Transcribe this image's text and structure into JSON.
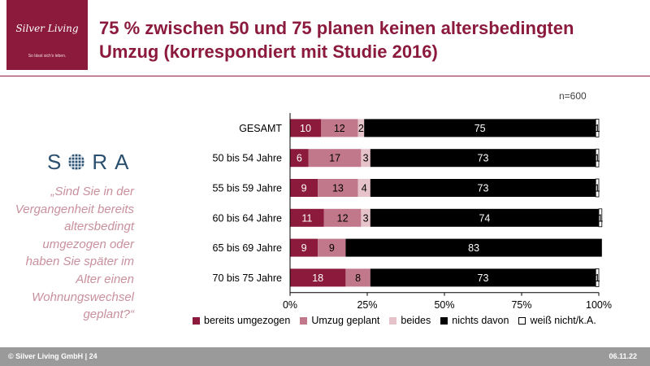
{
  "logo": {
    "name": "Silver Living",
    "tagline": "So lässt sich's leben."
  },
  "title": "75 % zwischen 50 und 75 planen keinen altersbedingten Umzug (korrespondiert mit Studie 2016)",
  "sora": {
    "left": "S",
    "right": "RA"
  },
  "question": "„Sind Sie in der Vergangenheit bereits altersbedingt umgezogen oder haben Sie später im Alter einen Wohnungswechsel geplant?“",
  "n_label": "n=600",
  "colors": {
    "brand": "#8b1a3d",
    "bereits": "#8b1a3d",
    "umzug": "#c0788a",
    "beides": "#e6c3cb",
    "nichts": "#000000",
    "weiss": "#ffffff"
  },
  "footer": {
    "left": "© Silver Living GmbH | 24",
    "right": "06.11.22"
  },
  "chart_data": {
    "type": "bar",
    "orientation": "horizontal",
    "stacked": true,
    "categories": [
      "GESAMT",
      "50 bis 54 Jahre",
      "55 bis 59 Jahre",
      "60 bis 64 Jahre",
      "65 bis 69 Jahre",
      "70 bis 75 Jahre"
    ],
    "series": [
      {
        "name": "bereits umgezogen",
        "color": "#8b1a3d",
        "values": [
          10,
          6,
          9,
          11,
          9,
          18
        ],
        "labels": [
          "10",
          "6",
          "9",
          "11",
          "9",
          "18"
        ]
      },
      {
        "name": "Umzug geplant",
        "color": "#c0788a",
        "values": [
          12,
          17,
          13,
          12,
          9,
          8
        ],
        "labels": [
          "12",
          "17",
          "13",
          "12",
          "9",
          "8"
        ]
      },
      {
        "name": "beides",
        "color": "#e6c3cb",
        "values": [
          2,
          3,
          4,
          3,
          0,
          0
        ],
        "labels": [
          "2",
          "3",
          "4",
          "3",
          "",
          ""
        ]
      },
      {
        "name": "nichts davon",
        "color": "#000000",
        "values": [
          75,
          73,
          73,
          74,
          83,
          73
        ],
        "labels": [
          "75",
          "73",
          "73",
          "74",
          "83",
          "73"
        ]
      },
      {
        "name": "weiß nicht/k.A.",
        "color": "#ffffff",
        "values": [
          1,
          1,
          1,
          1,
          0,
          1
        ],
        "labels": [
          "1",
          "1",
          "1",
          "1",
          "",
          "1"
        ]
      }
    ],
    "xticks": [
      "0%",
      "25%",
      "50%",
      "75%",
      "100%"
    ],
    "xlim": [
      0,
      100
    ],
    "grid": false,
    "legend": "bottom"
  }
}
